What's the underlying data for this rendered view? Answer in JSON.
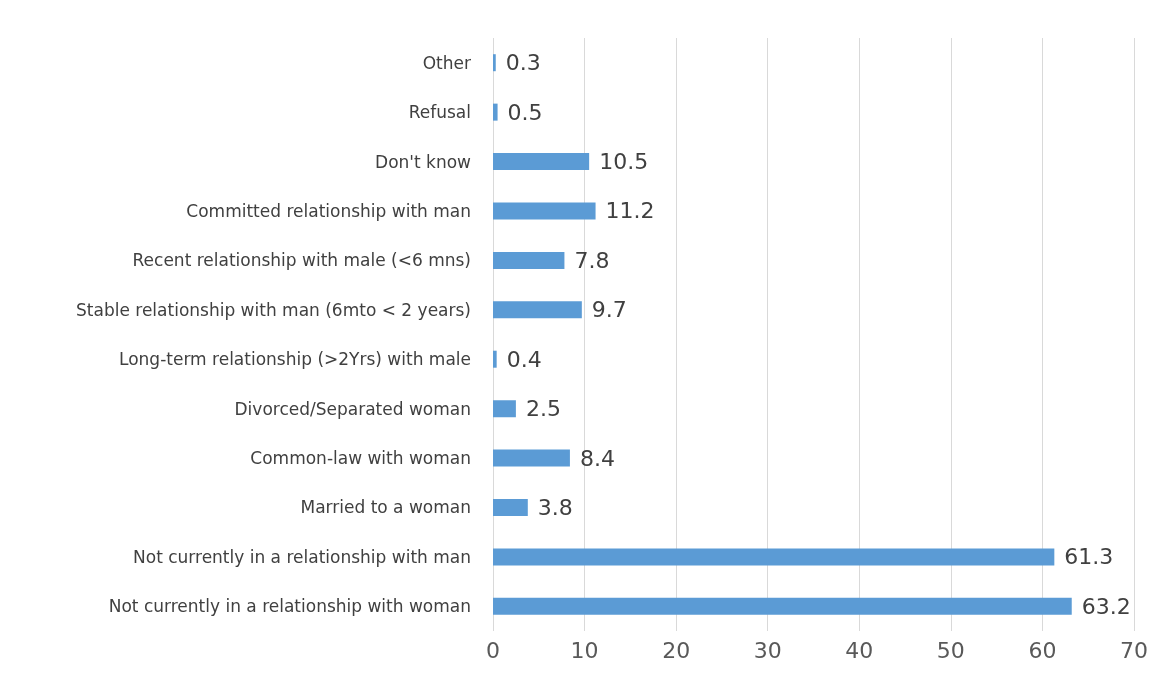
{
  "chart_data": {
    "type": "bar",
    "orientation": "horizontal",
    "categories": [
      "Other",
      "Refusal",
      "Don't know",
      "Committed relationship with man",
      "Recent relationship with male (<6 mns)",
      "Stable relationship with man (6mto < 2 years)",
      "Long-term relationship (>2Yrs) with male",
      "Divorced/Separated woman",
      "Common-law with woman",
      "Married to a woman",
      "Not currently in a relationship with man",
      "Not currently in a relationship with woman"
    ],
    "values": [
      0.3,
      0.5,
      10.5,
      11.2,
      7.8,
      9.7,
      0.4,
      2.5,
      8.4,
      3.8,
      61.3,
      63.2
    ],
    "color": "#5b9bd5",
    "xlim": [
      0,
      70
    ],
    "xticks": [
      0,
      10,
      20,
      30,
      40,
      50,
      60,
      70
    ],
    "grid": "x",
    "data_labels": true
  }
}
